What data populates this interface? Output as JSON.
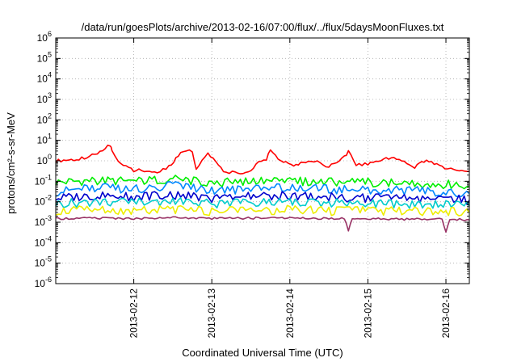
{
  "chart_data": {
    "type": "line",
    "title": "/data/run/goesPlots/archive/2013-02-16/07:00/flux/../flux/5daysMoonFluxes.txt",
    "xlabel": "Coordinated Universal Time (UTC)",
    "ylabel": "protons/cm²-s-sr-MeV",
    "y_scale": "log",
    "ylim": [
      1e-06,
      1000000.0
    ],
    "y_ticks": [
      {
        "value": 1e-06,
        "base": "10",
        "exp": "-6"
      },
      {
        "value": 1e-05,
        "base": "10",
        "exp": "-5"
      },
      {
        "value": 0.0001,
        "base": "10",
        "exp": "-4"
      },
      {
        "value": 0.001,
        "base": "10",
        "exp": "-3"
      },
      {
        "value": 0.01,
        "base": "10",
        "exp": "-2"
      },
      {
        "value": 0.1,
        "base": "10",
        "exp": "-1"
      },
      {
        "value": 1.0,
        "base": "10",
        "exp": "0"
      },
      {
        "value": 10.0,
        "base": "10",
        "exp": "1"
      },
      {
        "value": 100.0,
        "base": "10",
        "exp": "2"
      },
      {
        "value": 1000.0,
        "base": "10",
        "exp": "3"
      },
      {
        "value": 10000.0,
        "base": "10",
        "exp": "4"
      },
      {
        "value": 100000.0,
        "base": "10",
        "exp": "5"
      },
      {
        "value": 1000000.0,
        "base": "10",
        "exp": "6"
      }
    ],
    "x_unit": "days",
    "xlim": [
      0,
      5.3
    ],
    "x_ticks": [
      {
        "value": 1,
        "label": "2013-02-12"
      },
      {
        "value": 2,
        "label": "2013-02-13"
      },
      {
        "value": 3,
        "label": "2013-02-14"
      },
      {
        "value": 4,
        "label": "2013-02-15"
      },
      {
        "value": 5,
        "label": "2013-02-16"
      }
    ],
    "grid": true,
    "legend": "none",
    "series": [
      {
        "color": "#ff0000",
        "x": [
          0,
          0.3,
          0.5,
          0.6,
          0.7,
          0.72,
          0.8,
          0.9,
          1.0,
          1.3,
          1.45,
          1.6,
          1.75,
          1.8,
          1.95,
          2.15,
          2.3,
          2.5,
          2.6,
          2.7,
          2.75,
          2.85,
          3.05,
          3.2,
          3.35,
          3.5,
          3.6,
          3.7,
          3.75,
          3.85,
          4.0,
          4.1,
          4.3,
          4.5,
          4.6,
          4.75,
          4.95,
          5.1,
          5.3
        ],
        "y": [
          1.0,
          1.2,
          2.0,
          3.5,
          6.0,
          3.0,
          0.9,
          0.5,
          0.35,
          0.28,
          0.5,
          2.5,
          3.0,
          0.4,
          2.5,
          0.3,
          0.25,
          0.3,
          0.8,
          1.2,
          3.0,
          1.2,
          0.6,
          0.8,
          1.0,
          0.5,
          0.8,
          1.5,
          3.0,
          0.6,
          0.7,
          1.0,
          1.5,
          0.8,
          0.5,
          1.2,
          0.5,
          0.35,
          0.3
        ]
      },
      {
        "color": "#00ee00",
        "x": [
          0,
          0.5,
          1.0,
          1.5,
          2.0,
          2.5,
          3.0,
          3.5,
          4.0,
          4.5,
          5.0,
          5.3
        ],
        "y": [
          0.09,
          0.11,
          0.1,
          0.13,
          0.08,
          0.1,
          0.1,
          0.09,
          0.09,
          0.08,
          0.07,
          0.06
        ]
      },
      {
        "color": "#0088ff",
        "x": [
          0,
          0.5,
          1.0,
          1.5,
          2.0,
          2.5,
          3.0,
          3.5,
          4.0,
          4.5,
          5.0,
          5.3
        ],
        "y": [
          0.03,
          0.05,
          0.04,
          0.06,
          0.035,
          0.04,
          0.05,
          0.04,
          0.035,
          0.035,
          0.03,
          0.025
        ]
      },
      {
        "color": "#0000cc",
        "x": [
          0,
          0.5,
          1.0,
          1.5,
          2.0,
          2.5,
          3.0,
          3.5,
          4.0,
          4.5,
          5.0,
          5.3
        ],
        "y": [
          0.015,
          0.02,
          0.018,
          0.022,
          0.015,
          0.018,
          0.02,
          0.017,
          0.015,
          0.014,
          0.014,
          0.012
        ]
      },
      {
        "color": "#00cccc",
        "x": [
          0,
          0.5,
          1.0,
          1.5,
          2.0,
          2.5,
          3.0,
          3.5,
          4.0,
          4.5,
          5.0,
          5.3
        ],
        "y": [
          0.008,
          0.01,
          0.009,
          0.011,
          0.008,
          0.009,
          0.01,
          0.009,
          0.008,
          0.007,
          0.007,
          0.006
        ]
      },
      {
        "color": "#eeee00",
        "x": [
          0,
          0.5,
          1.0,
          1.5,
          2.0,
          2.5,
          3.0,
          3.5,
          4.0,
          4.5,
          5.0,
          5.3
        ],
        "y": [
          0.0035,
          0.004,
          0.0035,
          0.004,
          0.0035,
          0.0035,
          0.004,
          0.0035,
          0.0035,
          0.0033,
          0.0032,
          0.003
        ]
      },
      {
        "color": "#993366",
        "x": [
          0,
          0.5,
          1.0,
          1.5,
          2.0,
          2.5,
          3.0,
          3.5,
          3.7,
          3.75,
          3.8,
          4.0,
          4.5,
          4.95,
          5.0,
          5.05,
          5.3
        ],
        "y": [
          0.0015,
          0.0016,
          0.0015,
          0.0017,
          0.0015,
          0.0016,
          0.0016,
          0.0015,
          0.0015,
          0.0004,
          0.0015,
          0.0015,
          0.0014,
          0.0014,
          0.0003,
          0.0014,
          0.0013
        ]
      }
    ]
  }
}
